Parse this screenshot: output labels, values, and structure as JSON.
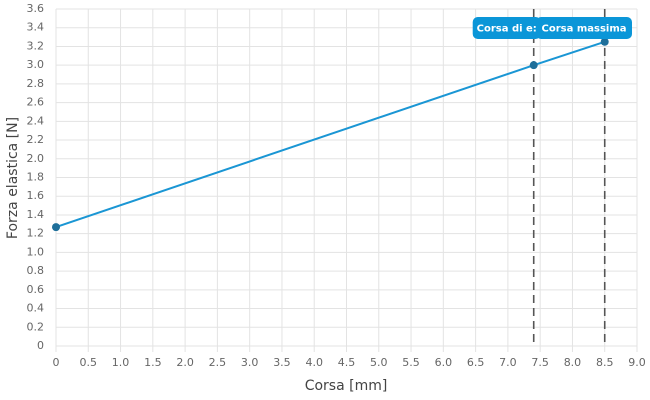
{
  "chart_data": {
    "type": "line",
    "x_label": "Corsa [mm]",
    "y_label": "Forza elastica [N]",
    "x": [
      0,
      7.4,
      8.5
    ],
    "series": [
      {
        "color": "#1a96d4",
        "point_color": "#1f6f9a",
        "values": [
          1.27,
          3.0,
          3.25
        ]
      }
    ],
    "annotations": [
      {
        "x": 7.4,
        "label": "Corsa di e:"
      },
      {
        "x": 8.5,
        "label": "Corsa massima"
      }
    ],
    "annotation_color": "#0b96d8",
    "xlim": [
      0,
      9
    ],
    "ylim": [
      0,
      3.6
    ],
    "xticks": [
      0,
      0.5,
      {
        "value": 1,
        "label": "1.0"
      },
      1.5,
      {
        "value": 2,
        "label": "2.0"
      },
      2.5,
      {
        "value": 3,
        "label": "3.0"
      },
      3.5,
      {
        "value": 4,
        "label": "4.0"
      },
      4.5,
      {
        "value": 5,
        "label": "5.0"
      },
      5.5,
      {
        "value": 6,
        "label": "6.0"
      },
      6.5,
      {
        "value": 7,
        "label": "7.0"
      },
      7.5,
      {
        "value": 8,
        "label": "8.0"
      },
      8.5,
      {
        "value": 9,
        "label": "9.0"
      }
    ],
    "yticks": [
      0,
      0.2,
      0.4,
      0.6,
      0.8,
      {
        "value": 1,
        "label": "1.0"
      },
      1.2,
      1.4,
      1.6,
      1.8,
      {
        "value": 2,
        "label": "2.0"
      },
      2.2,
      2.4,
      2.6,
      2.8,
      {
        "value": 3,
        "label": "3.0"
      },
      3.2,
      3.4,
      3.6
    ],
    "grid": true
  }
}
